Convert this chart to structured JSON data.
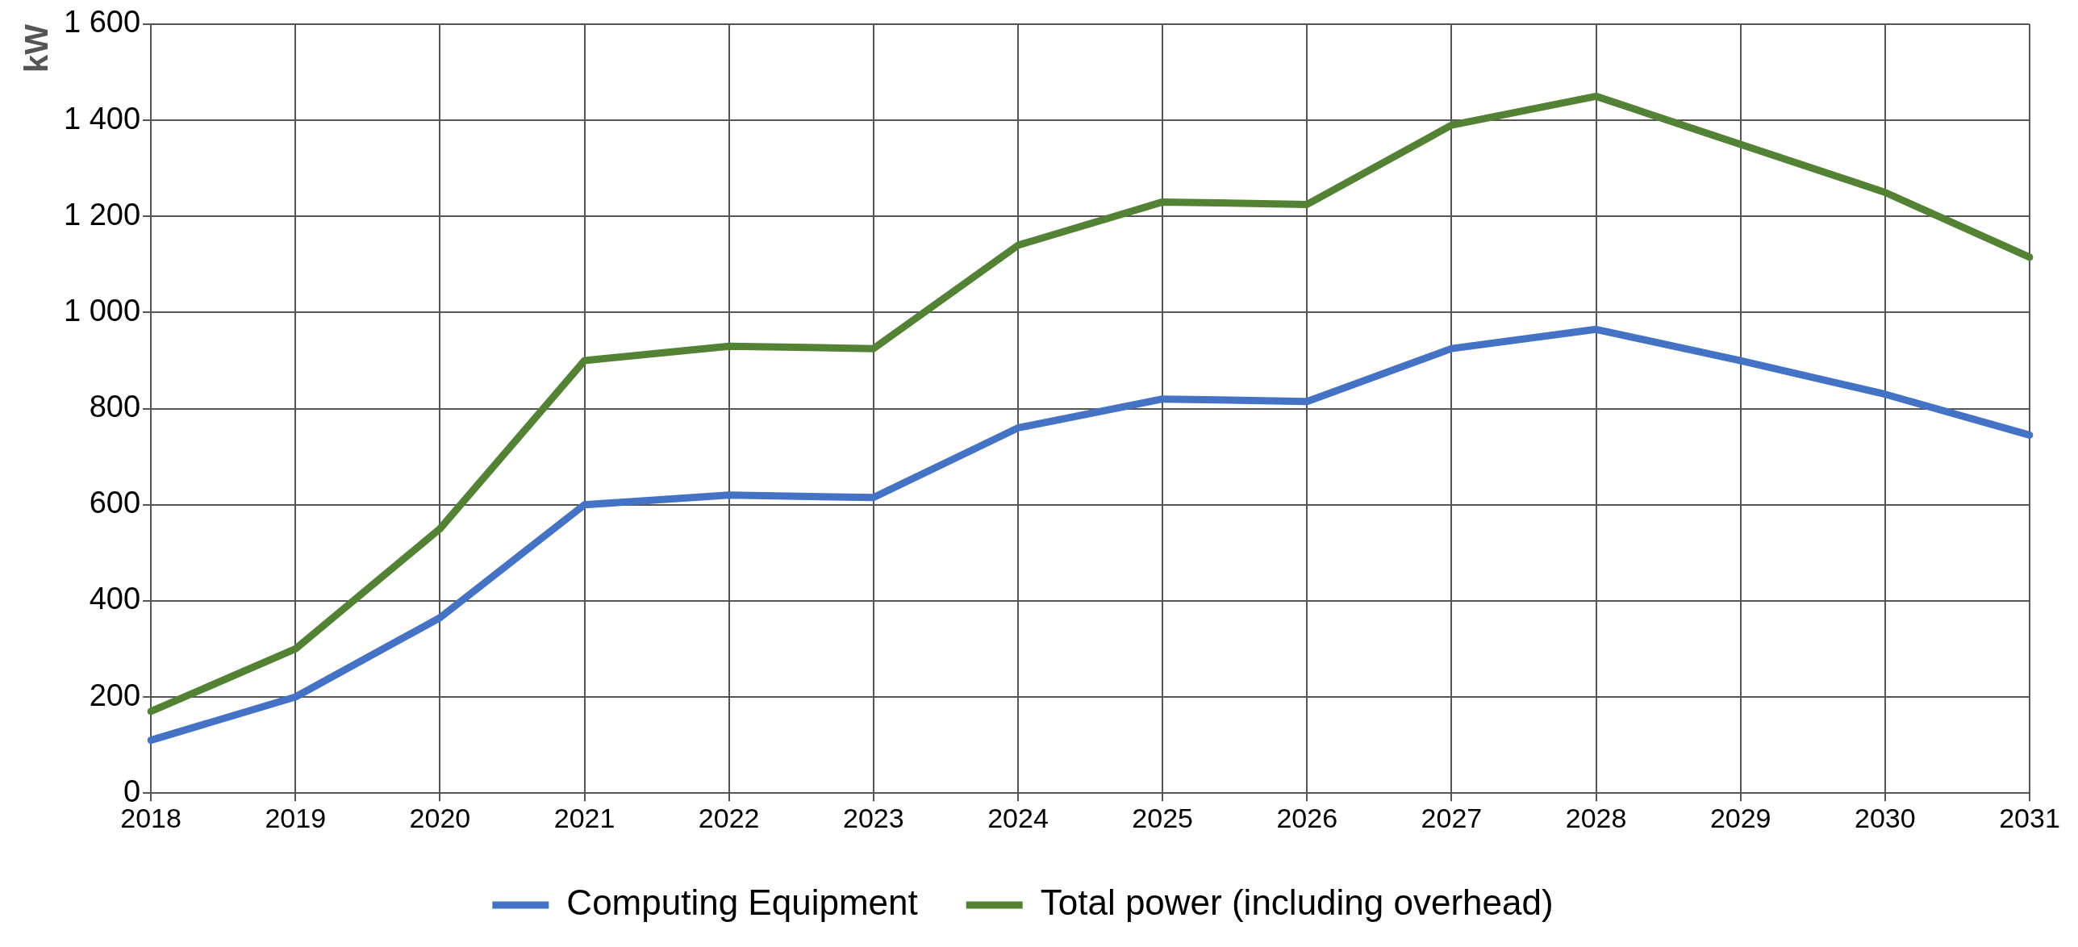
{
  "chart_data": {
    "type": "line",
    "ylabel": "kW",
    "categories": [
      "2018",
      "2019",
      "2020",
      "2021",
      "2022",
      "2023",
      "2024",
      "2025",
      "2026",
      "2027",
      "2028",
      "2029",
      "2030",
      "2031"
    ],
    "series": [
      {
        "name": "Computing Equipment",
        "color": "#4472c4",
        "values": [
          110,
          200,
          365,
          600,
          620,
          615,
          760,
          820,
          815,
          925,
          965,
          900,
          830,
          745
        ]
      },
      {
        "name": "Total power (including overhead)",
        "color": "#548235",
        "values": [
          170,
          300,
          550,
          900,
          930,
          925,
          1140,
          1230,
          1225,
          1390,
          1450,
          1350,
          1250,
          1115
        ]
      }
    ],
    "ylim": [
      0,
      1600
    ],
    "yticks": [
      0,
      200,
      400,
      600,
      800,
      {
        "value": 1000,
        "label": "1 000"
      },
      {
        "value": 1200,
        "label": "1 200"
      },
      {
        "value": 1400,
        "label": "1 400"
      },
      {
        "value": 1600,
        "label": "1 600"
      }
    ],
    "grid": true,
    "legend": "bottom",
    "marker": "none",
    "line_style": "solid"
  }
}
